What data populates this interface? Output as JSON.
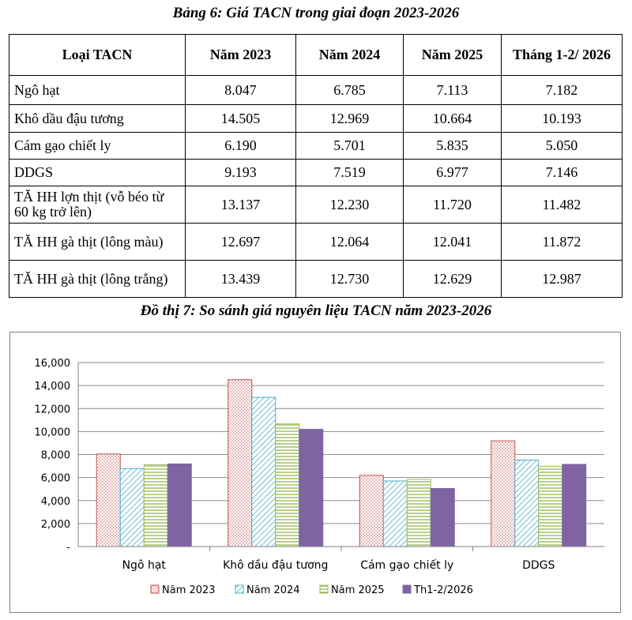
{
  "table": {
    "title": "Bảng 6: Giá TACN trong giai đoạn 2023-2026",
    "headers": [
      "Loại TACN",
      "Năm 2023",
      "Năm 2024",
      "Năm 2025",
      "Tháng 1-2/ 2026"
    ],
    "rows": [
      {
        "name": "Ngô hạt",
        "values": [
          "8.047",
          "6.785",
          "7.113",
          "7.182"
        ]
      },
      {
        "name": "Khô dầu đậu tương",
        "values": [
          "14.505",
          "12.969",
          "10.664",
          "10.193"
        ]
      },
      {
        "name": "Cám gạo chiết ly",
        "values": [
          "6.190",
          "5.701",
          "5.835",
          "5.050"
        ]
      },
      {
        "name": "DDGS",
        "values": [
          "9.193",
          "7.519",
          "6.977",
          "7.146"
        ]
      },
      {
        "name": "TĂ HH lợn thịt (vỗ béo từ 60 kg trở lên)",
        "values": [
          "13.137",
          "12.230",
          "11.720",
          "11.482"
        ]
      },
      {
        "name": "TĂ HH gà thịt (lông màu)",
        "values": [
          "12.697",
          "12.064",
          "12.041",
          "11.872"
        ]
      },
      {
        "name": "TĂ HH gà thịt (lông trắng)",
        "values": [
          "13.439",
          "12.730",
          "12.629",
          "12.987"
        ]
      }
    ]
  },
  "chart_title": "Đồ thị 7:  So sánh giá nguyên liệu TACN năm 2023-2026",
  "chart_data": {
    "type": "bar",
    "title": "Đồ thị 7:  So sánh giá nguyên liệu TACN năm 2023-2026",
    "categories": [
      "Ngô hạt",
      "Khô dầu đậu tương",
      "Cám gạo chiết ly",
      "DDGS"
    ],
    "series": [
      {
        "name": "Năm 2023",
        "values": [
          8047,
          14505,
          6190,
          9193
        ],
        "color": "#c0504d",
        "pattern": "dots"
      },
      {
        "name": "Năm 2024",
        "values": [
          6785,
          12969,
          5701,
          7519
        ],
        "color": "#4bacc6",
        "pattern": "diagonal"
      },
      {
        "name": "Năm 2025",
        "values": [
          7113,
          10664,
          5835,
          6977
        ],
        "color": "#9bbb59",
        "pattern": "horizontal"
      },
      {
        "name": "Th1-2/2026",
        "values": [
          7182,
          10193,
          5050,
          7146
        ],
        "color": "#8064a2",
        "pattern": "solid"
      }
    ],
    "ylim": [
      0,
      16000
    ],
    "yticks": [
      "-",
      "2,000",
      "4,000",
      "6,000",
      "8,000",
      "10,000",
      "12,000",
      "14,000",
      "16,000"
    ],
    "xlabel": "",
    "ylabel": "",
    "grid": true,
    "legend": "bottom"
  }
}
